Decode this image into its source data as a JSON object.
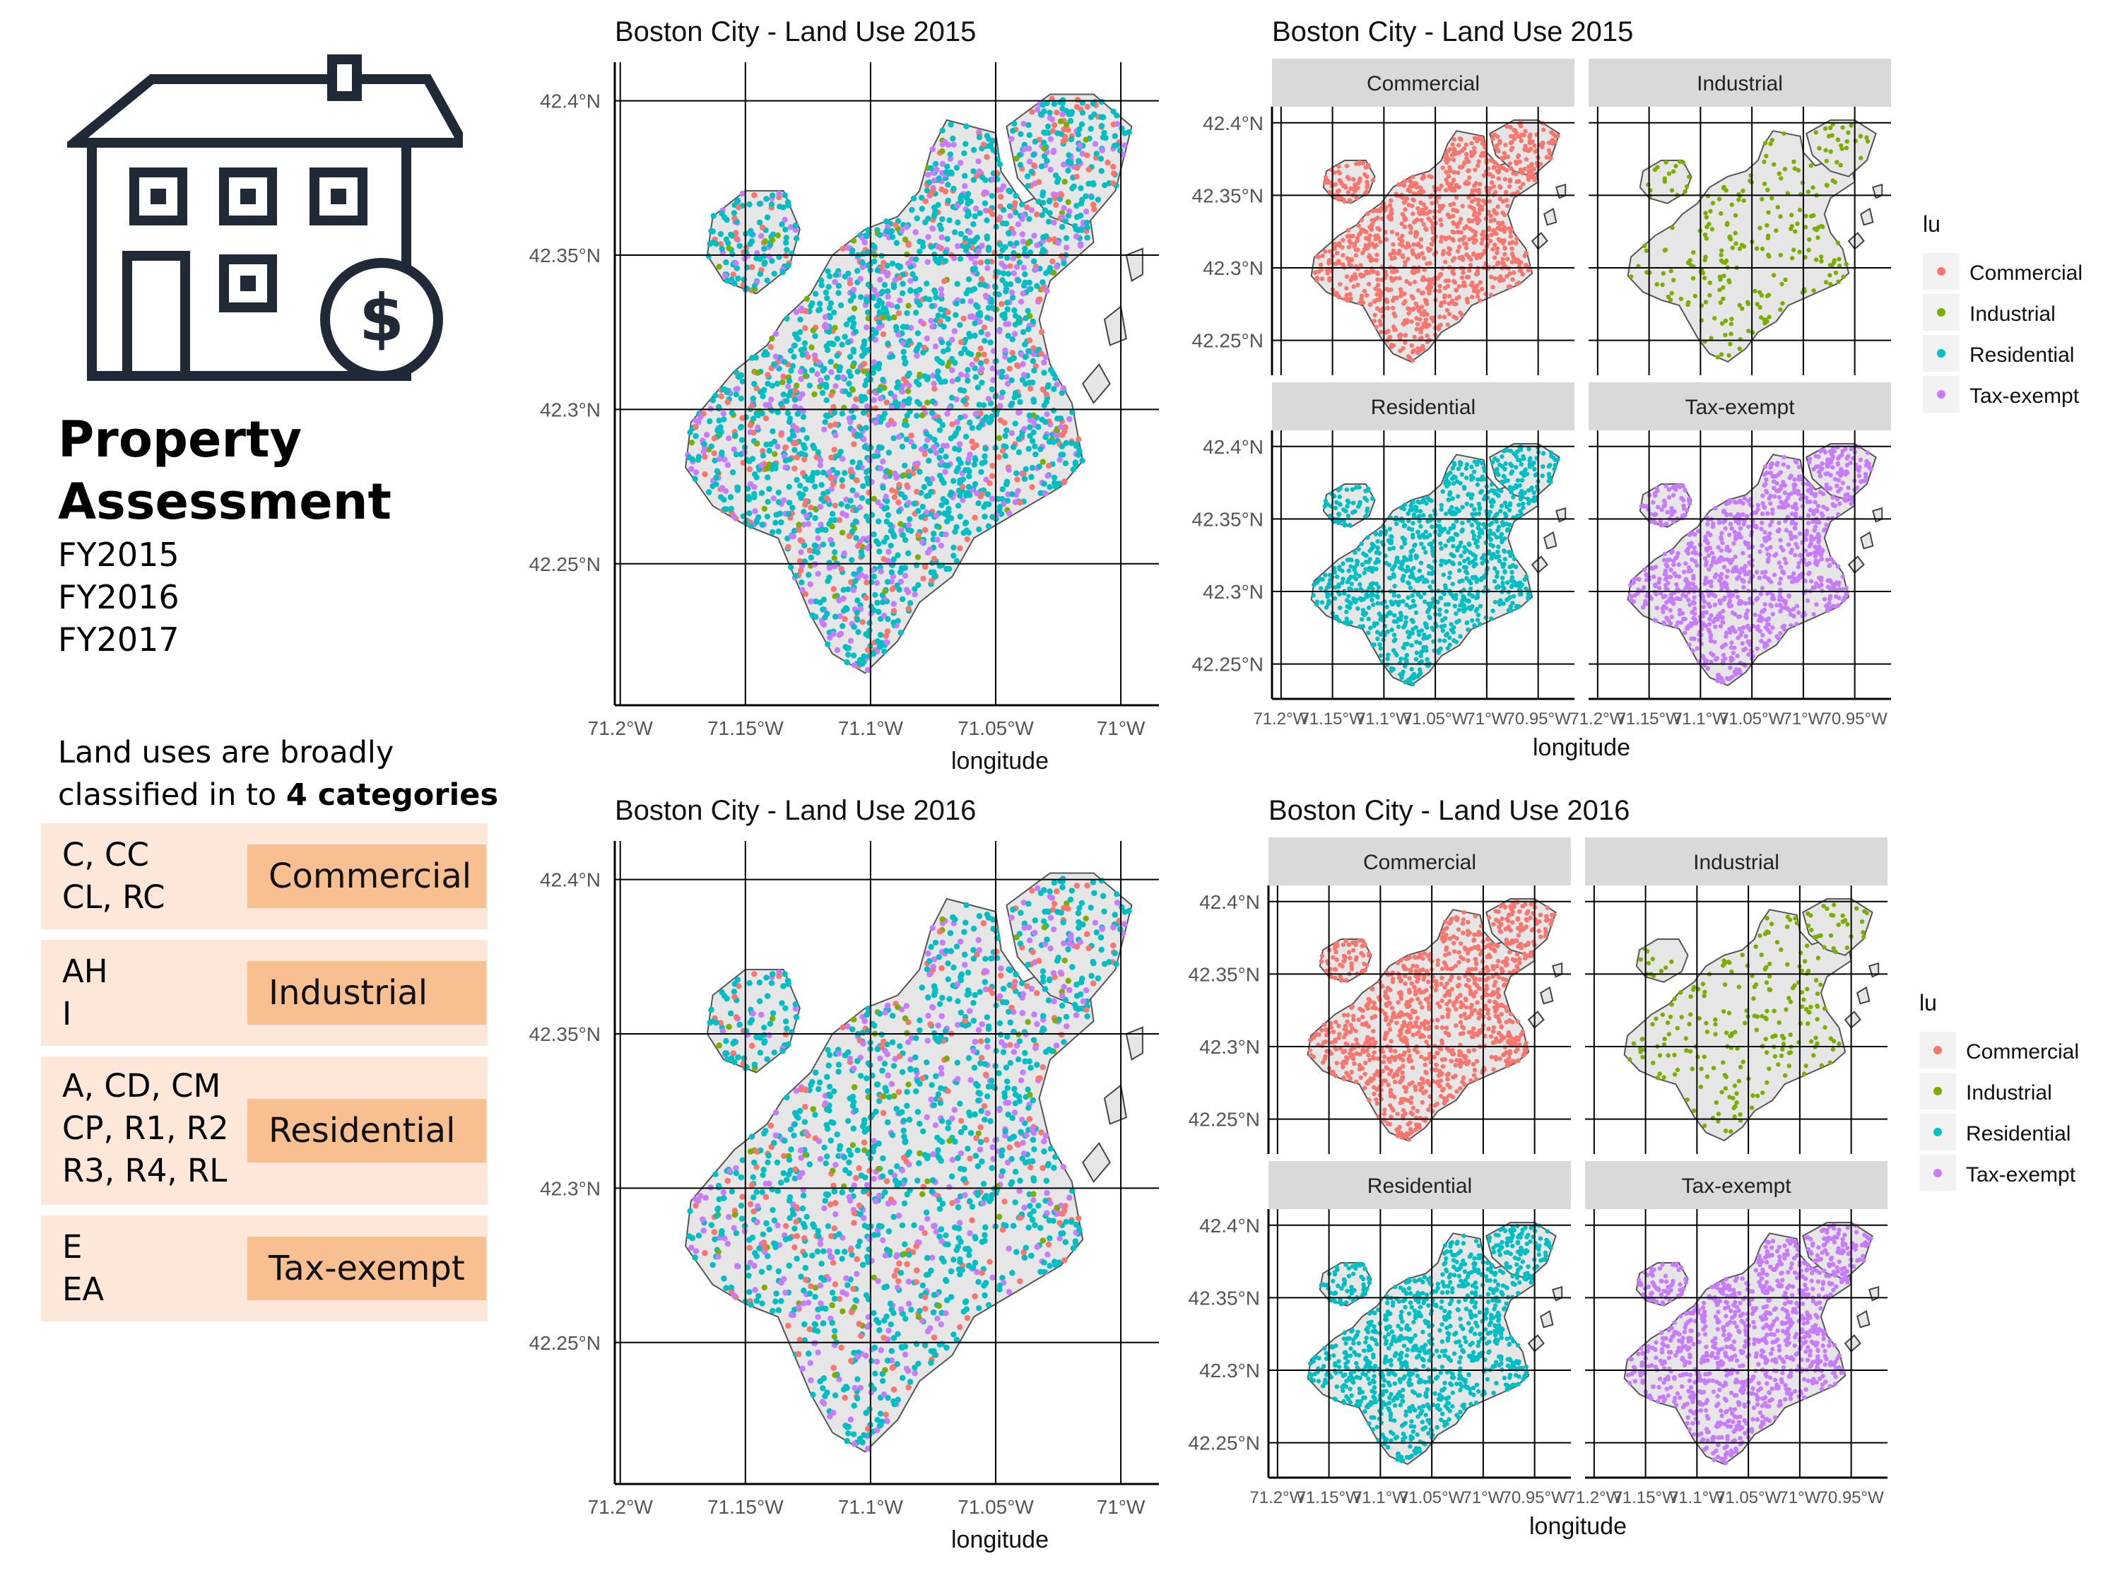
{
  "left_panel": {
    "title_line1": "Property",
    "title_line2": "Assessment",
    "fiscal_years": [
      "FY2015",
      "FY2016",
      "FY2017"
    ],
    "intro_text": "Land uses are broadly classified in to",
    "intro_bold": "4 categories",
    "categories": [
      {
        "codes_line1": "C, CC",
        "codes_line2": "CL, RC",
        "codes_line3": "",
        "label": "Commercial"
      },
      {
        "codes_line1": "AH",
        "codes_line2": "I",
        "codes_line3": "",
        "label": "Industrial"
      },
      {
        "codes_line1": "A, CD, CM",
        "codes_line2": "CP, R1, R2",
        "codes_line3": "R3, R4, RL",
        "label": "Residential"
      },
      {
        "codes_line1": "E",
        "codes_line2": "EA",
        "codes_line3": "",
        "label": "Tax-exempt"
      }
    ],
    "icon": "house-dollar-icon"
  },
  "colors": {
    "Commercial": "#f8766d",
    "Industrial": "#7cae00",
    "Residential": "#00bfc4",
    "Tax-exempt": "#c77cff",
    "land": "#e6e6e6",
    "category_row": "#fde7d8",
    "category_label": "#f8bf90"
  },
  "chart_data": [
    {
      "type": "map",
      "title": "Boston City - Land Use 2015",
      "xlabel": "longitude",
      "ylabel": "",
      "x_ticks": [
        "71.2°W",
        "71.15°W",
        "71.1°W",
        "71.05°W",
        "71°W"
      ],
      "y_ticks": [
        "42.4°N",
        "42.35°N",
        "42.3°N",
        "42.25°N"
      ],
      "series": [
        "Residential",
        "Tax-exempt",
        "Commercial",
        "Industrial"
      ]
    },
    {
      "type": "map-facets",
      "title": "Boston City - Land Use 2015",
      "xlabel": "longitude",
      "facets": [
        "Commercial",
        "Industrial",
        "Residential",
        "Tax-exempt"
      ],
      "x_ticks": [
        "71.2°W",
        "71.15°W",
        "71.1°W",
        "71.05°W",
        "71°W",
        "70.95°W"
      ],
      "y_ticks": [
        "42.4°N",
        "42.35°N",
        "42.3°N",
        "42.25°N"
      ],
      "legend_title": "lu",
      "legend": [
        "Commercial",
        "Industrial",
        "Residential",
        "Tax-exempt"
      ]
    },
    {
      "type": "map",
      "title": "Boston City - Land Use 2016",
      "xlabel": "longitude",
      "ylabel": "",
      "x_ticks": [
        "71.2°W",
        "71.15°W",
        "71.1°W",
        "71.05°W",
        "71°W"
      ],
      "y_ticks": [
        "42.4°N",
        "42.35°N",
        "42.3°N",
        "42.25°N"
      ],
      "series": [
        "Residential",
        "Tax-exempt",
        "Commercial",
        "Industrial"
      ]
    },
    {
      "type": "map-facets",
      "title": "Boston City - Land Use 2016",
      "xlabel": "longitude",
      "facets": [
        "Commercial",
        "Industrial",
        "Residential",
        "Tax-exempt"
      ],
      "x_ticks": [
        "71.2°W",
        "71.15°W",
        "71.1°W",
        "71.05°W",
        "71°W",
        "70.95°W"
      ],
      "y_ticks": [
        "42.4°N",
        "42.35°N",
        "42.3°N",
        "42.25°N"
      ],
      "legend_title": "lu",
      "legend": [
        "Commercial",
        "Industrial",
        "Residential",
        "Tax-exempt"
      ]
    }
  ]
}
